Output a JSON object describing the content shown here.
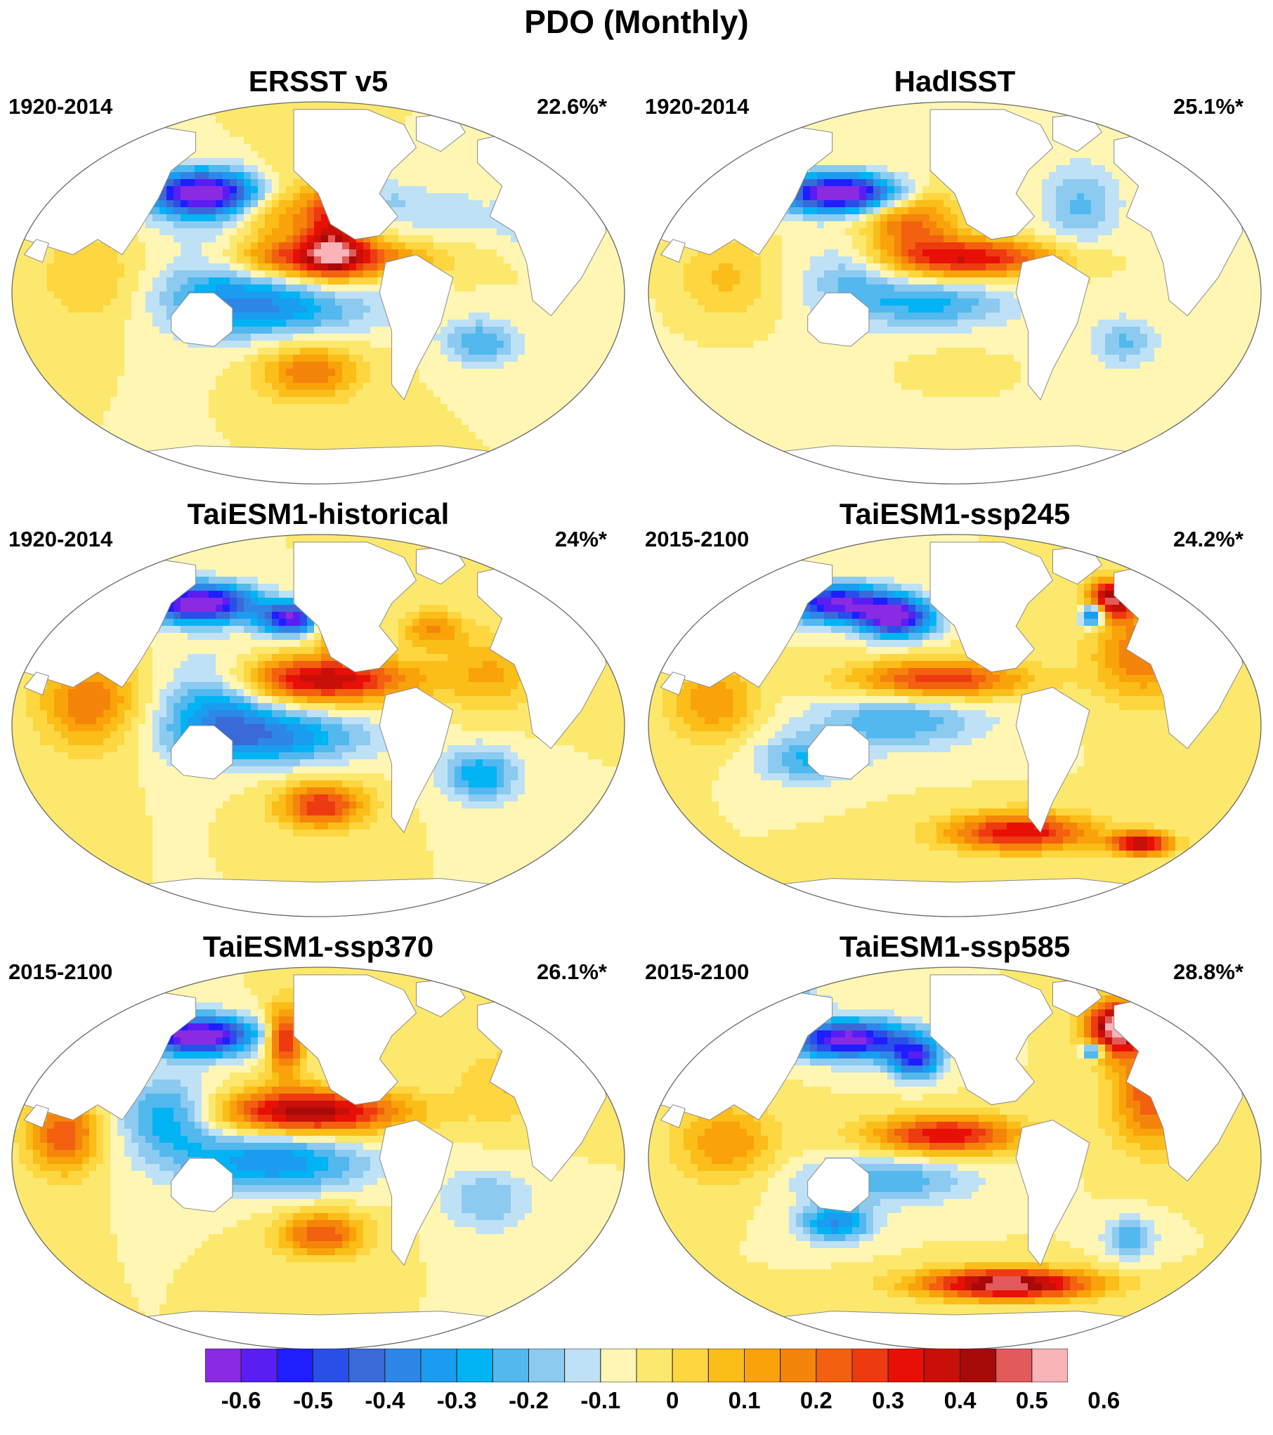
{
  "figure": {
    "title": "PDO (Monthly)"
  },
  "panels": [
    {
      "title": "ERSST v5",
      "period": "1920-2014",
      "variance": "22.6%*",
      "pattern": "ersst"
    },
    {
      "title": "HadISST",
      "period": "1920-2014",
      "variance": "25.1%*",
      "pattern": "hadisst"
    },
    {
      "title": "TaiESM1-historical",
      "period": "1920-2014",
      "variance": "24%*",
      "pattern": "hist"
    },
    {
      "title": "TaiESM1-ssp245",
      "period": "2015-2100",
      "variance": "24.2%*",
      "pattern": "ssp245"
    },
    {
      "title": "TaiESM1-ssp370",
      "period": "2015-2100",
      "variance": "26.1%*",
      "pattern": "ssp370"
    },
    {
      "title": "TaiESM1-ssp585",
      "period": "2015-2100",
      "variance": "28.8%*",
      "pattern": "ssp585"
    }
  ],
  "colorbar": {
    "colors": [
      "#8a2be2",
      "#5a1ef2",
      "#1e1eff",
      "#2a4ee8",
      "#3a6ad8",
      "#2e86e6",
      "#1a9cf0",
      "#00b4f4",
      "#52b8ee",
      "#8ccaf0",
      "#bfe1f5",
      "#fff6b4",
      "#fde86e",
      "#fdd640",
      "#fbbd18",
      "#f9a20a",
      "#f5840a",
      "#f26010",
      "#ee3a10",
      "#e81006",
      "#c81008",
      "#a80a0a",
      "#e25a5a",
      "#f8b4b8"
    ],
    "labels": [
      "-0.6",
      "-0.5",
      "-0.4",
      "-0.3",
      "-0.2",
      "-0.1",
      "0",
      "0.1",
      "0.2",
      "0.3",
      "0.4",
      "0.5",
      "0.6"
    ],
    "label_boundaries": [
      2,
      4,
      6,
      8,
      10,
      12,
      14,
      16,
      18,
      20,
      22,
      24,
      26
    ]
  }
}
